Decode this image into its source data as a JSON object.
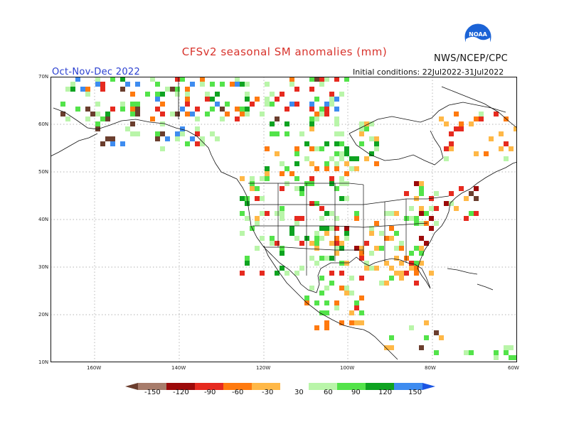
{
  "header": {
    "title": "CFSv2 seasonal SM anomalies (mm)",
    "org": "NWS/NCEP/CPC",
    "season": "Oct-Nov-Dec 2022",
    "initial_conditions": "Initial conditions: 22Jul2022-31Jul2022",
    "logo_text": "NOAA"
  },
  "map": {
    "lat_labels": [
      "70N",
      "60N",
      "50N",
      "40N",
      "30N",
      "20N",
      "10N"
    ],
    "lon_labels": [
      "160W",
      "140W",
      "120W",
      "100W",
      "80W",
      "60W"
    ]
  },
  "legend": {
    "labels": [
      "-150",
      "-120",
      "-90",
      "-60",
      "-30",
      "30",
      "60",
      "90",
      "120",
      "150"
    ],
    "colors": [
      "#6b3e2e",
      "#a77c6b",
      "#9c0a0a",
      "#e62a1f",
      "#ff7a0f",
      "#ffb847",
      "#ffffff",
      "#b9f5a9",
      "#53e34a",
      "#0ea321",
      "#3e8cf0",
      "#1b55e3"
    ]
  }
}
